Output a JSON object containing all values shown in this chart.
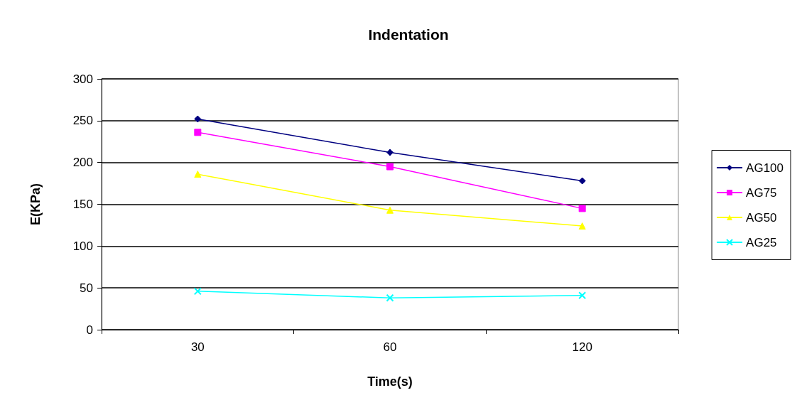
{
  "chart_data": {
    "type": "line",
    "title": "Indentation",
    "xlabel": "Time(s)",
    "ylabel": "E(KPa)",
    "categories": [
      "30",
      "60",
      "120"
    ],
    "series": [
      {
        "name": "AG100",
        "color": "#000080",
        "values": [
          252,
          212,
          178
        ],
        "marker": "diamond"
      },
      {
        "name": "AG75",
        "color": "#ff00ff",
        "values": [
          236,
          195,
          145
        ],
        "marker": "square"
      },
      {
        "name": "AG50",
        "color": "#ffff00",
        "values": [
          186,
          143,
          124
        ],
        "marker": "triangle"
      },
      {
        "name": "AG25",
        "color": "#00ffff",
        "values": [
          46,
          38,
          41
        ],
        "marker": "cross"
      }
    ],
    "ylim": [
      0,
      300
    ],
    "yticks": [
      0,
      50,
      100,
      150,
      200,
      250,
      300
    ],
    "grid": "y",
    "legend": "right",
    "line_style": "solid"
  }
}
